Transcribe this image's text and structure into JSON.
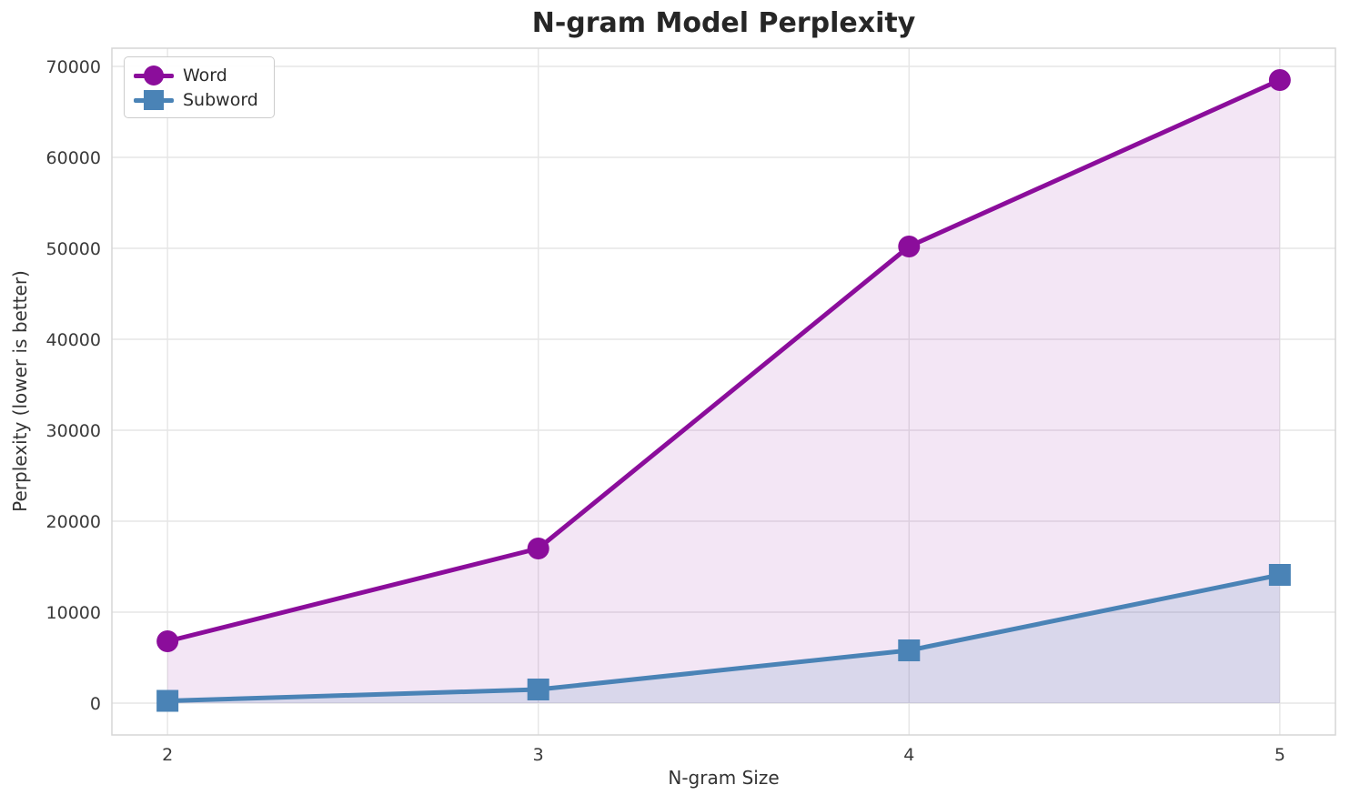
{
  "chart_data": {
    "type": "line",
    "title": "N-gram Model Perplexity",
    "xlabel": "N-gram Size",
    "ylabel": "Perplexity (lower is better)",
    "x": [
      2,
      3,
      4,
      5
    ],
    "xtick_labels": [
      "2",
      "3",
      "4",
      "5"
    ],
    "yticks": [
      0,
      10000,
      20000,
      30000,
      40000,
      50000,
      60000,
      70000
    ],
    "ytick_labels": [
      "0",
      "10000",
      "20000",
      "30000",
      "40000",
      "50000",
      "60000",
      "70000"
    ],
    "xlim": [
      1.85,
      5.15
    ],
    "ylim": [
      -3500,
      72000
    ],
    "grid": true,
    "legend_position": "upper left",
    "fill_to_zero": true,
    "colors": {
      "grid": "#e6e6e6",
      "spine": "#d5d5d5",
      "tick_text": "#3a3a3a"
    },
    "series": [
      {
        "name": "Word",
        "marker": "circle",
        "color": "#8B0D9B",
        "fill_opacity": 0.1,
        "values": [
          6800,
          17000,
          50200,
          68500
        ]
      },
      {
        "name": "Subword",
        "marker": "square",
        "color": "#4A83B6",
        "fill_opacity": 0.15,
        "values": [
          250,
          1500,
          5800,
          14100
        ]
      }
    ]
  }
}
